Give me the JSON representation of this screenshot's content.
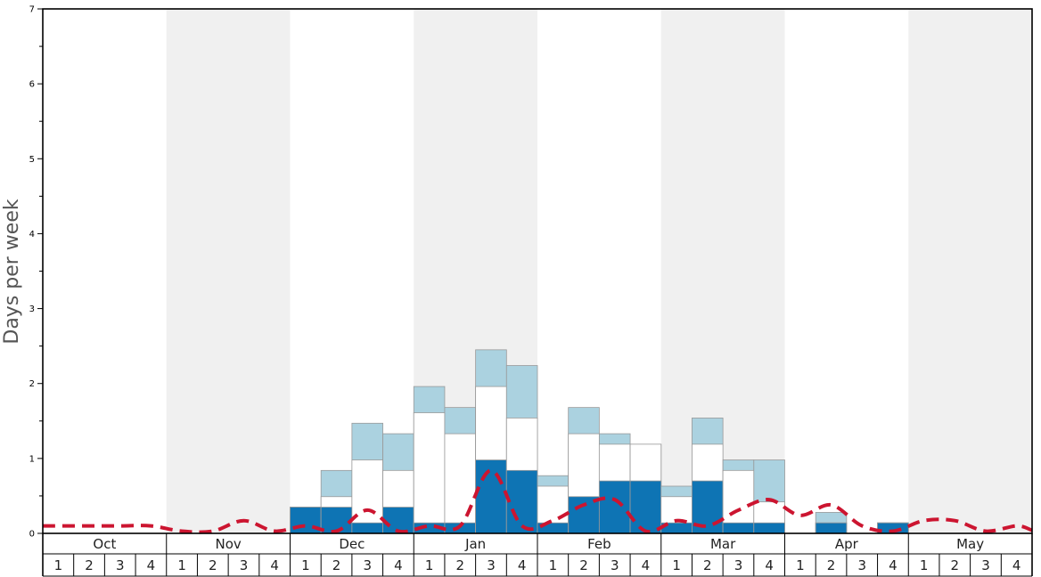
{
  "chart_data": {
    "type": "bar",
    "ylabel": "Days per week",
    "ylim": [
      0,
      7
    ],
    "y_ticks": [
      "0",
      "1",
      "2",
      "3",
      "4",
      "5",
      "6",
      "7"
    ],
    "months": [
      "Oct",
      "Nov",
      "Dec",
      "Jan",
      "Feb",
      "Mar",
      "Apr",
      "May"
    ],
    "weeks": [
      "1",
      "2",
      "3",
      "4"
    ],
    "colors": {
      "dark": "#0e74b4",
      "mid": "#ffffff",
      "light": "#abd2e0",
      "line": "#cc1530",
      "shade": "#f0f0f0"
    },
    "series": [
      {
        "values": [
          0,
          0,
          0,
          0,
          0,
          0,
          0,
          0,
          0.35,
          0.35,
          0.14,
          0.35,
          0.14,
          0.14,
          0.98,
          0.84,
          0.14,
          0.49,
          0.7,
          0.7,
          0.14,
          0.7,
          0.14,
          0.14,
          0,
          0.14,
          0,
          0.14,
          0,
          0,
          0,
          0
        ]
      },
      {
        "values": [
          0,
          0,
          0,
          0,
          0,
          0,
          0,
          0,
          0.35,
          0.49,
          0.98,
          0.84,
          1.61,
          1.33,
          1.96,
          1.54,
          0.63,
          1.33,
          1.19,
          1.19,
          0.49,
          1.19,
          0.84,
          0.42,
          0,
          0.14,
          0,
          0.14,
          0,
          0,
          0,
          0
        ]
      },
      {
        "values": [
          0,
          0,
          0,
          0,
          0,
          0,
          0,
          0,
          0.35,
          0.84,
          1.47,
          1.33,
          1.96,
          1.68,
          2.45,
          2.24,
          0.77,
          1.68,
          1.33,
          1.19,
          0.63,
          1.54,
          0.98,
          0.98,
          0,
          0.28,
          0,
          0.14,
          0,
          0,
          0,
          0
        ]
      },
      {
        "values": [
          0.1,
          0.1,
          0.1,
          0.1,
          0.03,
          0.03,
          0.17,
          0.03,
          0.1,
          0.03,
          0.31,
          0.03,
          0.1,
          0.1,
          0.84,
          0.1,
          0.17,
          0.38,
          0.45,
          0.03,
          0.17,
          0.1,
          0.31,
          0.45,
          0.24,
          0.38,
          0.1,
          0.03,
          0.17,
          0.17,
          0.03,
          0.1
        ]
      }
    ]
  }
}
